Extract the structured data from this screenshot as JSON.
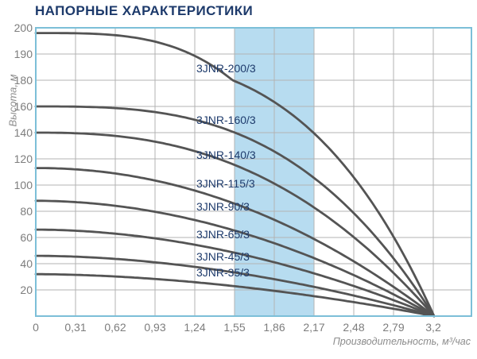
{
  "chart_data": {
    "type": "line",
    "title": "НАПОРНЫЕ ХАРАКТЕРИСТИКИ",
    "xlabel": "Производительность, м³/час",
    "ylabel": "Высота, м",
    "x_ticks": [
      "0",
      "0,31",
      "0,62",
      "0,93",
      "1,24",
      "1,55",
      "1,86",
      "2,17",
      "2,48",
      "2,79",
      "3,2"
    ],
    "y_ticks": [
      "200",
      "190",
      "180",
      "160",
      "140",
      "120",
      "100",
      "80",
      "60",
      "40",
      "20"
    ],
    "xlim": [
      0,
      3.2
    ],
    "ylim": [
      0,
      200
    ],
    "grid": "on",
    "legend_position": "inline-curve-labels",
    "highlight_band": {
      "from_label": "1,55",
      "to_label": "2,17"
    },
    "series": [
      {
        "name": "3JNR-200/3",
        "points": [
          [
            0,
            198
          ],
          [
            1.55,
            176
          ],
          [
            2.17,
            135
          ],
          [
            3.2,
            0
          ]
        ]
      },
      {
        "name": "3JNR-160/3",
        "points": [
          [
            0,
            160
          ],
          [
            1.55,
            139
          ],
          [
            2.17,
            104
          ],
          [
            3.2,
            0
          ]
        ]
      },
      {
        "name": "3JNR-140/3",
        "points": [
          [
            0,
            140
          ],
          [
            1.55,
            114
          ],
          [
            2.17,
            82
          ],
          [
            3.2,
            0
          ]
        ]
      },
      {
        "name": "3JNR-115/3",
        "points": [
          [
            0,
            113
          ],
          [
            1.55,
            85
          ],
          [
            2.17,
            58
          ],
          [
            3.2,
            0
          ]
        ]
      },
      {
        "name": "3JNR-90/3",
        "points": [
          [
            0,
            88
          ],
          [
            1.55,
            65
          ],
          [
            2.17,
            44
          ],
          [
            3.2,
            0
          ]
        ]
      },
      {
        "name": "3JNR-65/3",
        "points": [
          [
            0,
            66
          ],
          [
            1.55,
            49
          ],
          [
            2.17,
            33
          ],
          [
            3.2,
            0
          ]
        ]
      },
      {
        "name": "3JNR-45/3",
        "points": [
          [
            0,
            46
          ],
          [
            1.55,
            34
          ],
          [
            2.17,
            23
          ],
          [
            3.2,
            0
          ]
        ]
      },
      {
        "name": "3JNR-35/3",
        "points": [
          [
            0,
            32
          ],
          [
            1.55,
            24
          ],
          [
            2.17,
            16
          ],
          [
            3.2,
            0
          ]
        ]
      }
    ]
  },
  "colors": {
    "title": "#1d3a6b",
    "curve": "#545454",
    "curve_label": "#1d3a6b",
    "grid": "#b3b3b3",
    "plot_border": "#7cbfd8",
    "band": "#b7dcf0",
    "tick_text": "#7d7d7d",
    "axis_title_text": "#8c8c8c",
    "background": "#ffffff"
  }
}
